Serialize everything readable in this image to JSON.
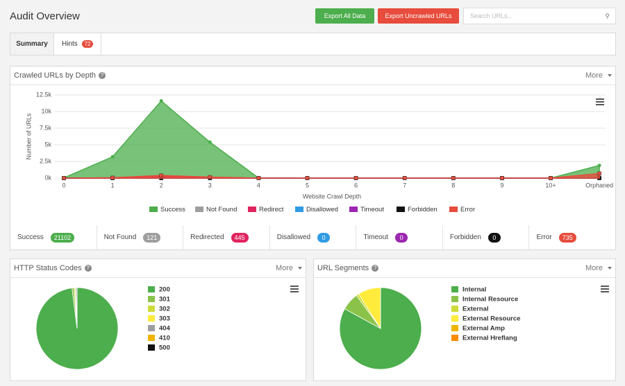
{
  "header": {
    "title": "Audit Overview",
    "buttons": [
      "Export All Data",
      "Export Uncrawled URLs"
    ],
    "search_placeholder": "Search URLs..."
  },
  "tabs": [
    {
      "label": "Summary"
    },
    {
      "label": "Hints",
      "badge": "72"
    }
  ],
  "panel_menus": [
    "More",
    "More",
    "More"
  ],
  "summary_stats": [
    {
      "label": "Success",
      "count": 21102,
      "color": "#4cae4c"
    },
    {
      "label": "Not Found",
      "count": 121,
      "color": "#9e9e9e"
    },
    {
      "label": "Redirected",
      "count": 445,
      "color": "#e0245e"
    },
    {
      "label": "Disallowed",
      "count": 0,
      "color": "#2f9be3"
    },
    {
      "label": "Timeout",
      "count": 0,
      "color": "#9c27b0"
    },
    {
      "label": "Forbidden",
      "count": 0,
      "color": "#111111"
    },
    {
      "label": "Error",
      "count": 735,
      "color": "#e74c3c"
    }
  ],
  "chart_data": [
    {
      "type": "area",
      "title": "Crawled URLs by Depth",
      "x_label": "Website Crawl Depth",
      "y_label": "Number of URLs",
      "categories": [
        "0",
        "1",
        "2",
        "3",
        "4",
        "5",
        "6",
        "7",
        "8",
        "9",
        "10+",
        "Orphaned"
      ],
      "ylim": [
        0,
        12500
      ],
      "yticks": [
        {
          "value": 0,
          "label": "0k"
        },
        {
          "value": 2500,
          "label": "2.5k"
        },
        {
          "value": 5000,
          "label": "5k"
        },
        {
          "value": 7500,
          "label": "7.5k"
        },
        {
          "value": 10000,
          "label": "10k"
        },
        {
          "value": 12500,
          "label": "12.5k"
        }
      ],
      "grid": true,
      "series": [
        {
          "name": "Success",
          "color": "#4cae4c",
          "values": [
            40,
            3200,
            11600,
            5400,
            20,
            0,
            0,
            0,
            0,
            0,
            0,
            1900
          ]
        },
        {
          "name": "Not Found",
          "color": "#9e9e9e",
          "values": [
            0,
            10,
            60,
            30,
            0,
            0,
            0,
            0,
            0,
            0,
            0,
            20
          ]
        },
        {
          "name": "Redirect",
          "color": "#e0245e",
          "values": [
            0,
            40,
            250,
            100,
            0,
            0,
            0,
            0,
            0,
            0,
            0,
            50
          ]
        },
        {
          "name": "Disallowed",
          "color": "#2f9be3",
          "values": [
            0,
            0,
            0,
            0,
            0,
            0,
            0,
            0,
            0,
            0,
            0,
            0
          ]
        },
        {
          "name": "Timeout",
          "color": "#9c27b0",
          "values": [
            0,
            0,
            0,
            0,
            0,
            0,
            0,
            0,
            0,
            0,
            0,
            0
          ]
        },
        {
          "name": "Forbidden",
          "color": "#111111",
          "values": [
            0,
            0,
            0,
            0,
            0,
            0,
            0,
            0,
            0,
            0,
            0,
            0
          ]
        },
        {
          "name": "Error",
          "color": "#e74c3c",
          "values": [
            0,
            60,
            400,
            150,
            0,
            0,
            0,
            0,
            0,
            0,
            0,
            700
          ]
        }
      ]
    },
    {
      "type": "pie",
      "title": "HTTP Status Codes",
      "categories": [
        "200",
        "301",
        "302",
        "303",
        "404",
        "410",
        "500"
      ],
      "values": [
        98,
        0.8,
        0.5,
        0.2,
        0.5,
        0,
        0
      ],
      "colors": [
        "#4cae4c",
        "#8bc34a",
        "#cddc39",
        "#ffeb3b",
        "#9e9e9e",
        "#f0b400",
        "#111111"
      ]
    },
    {
      "type": "pie",
      "title": "URL Segments",
      "categories": [
        "Internal",
        "Internal Resource",
        "External",
        "External Resource",
        "External Amp",
        "External Hreflang"
      ],
      "values": [
        83,
        7,
        1,
        9,
        0,
        0
      ],
      "colors": [
        "#4cae4c",
        "#8bc34a",
        "#cddc39",
        "#ffeb3b",
        "#f0b400",
        "#ff8c00"
      ]
    }
  ]
}
